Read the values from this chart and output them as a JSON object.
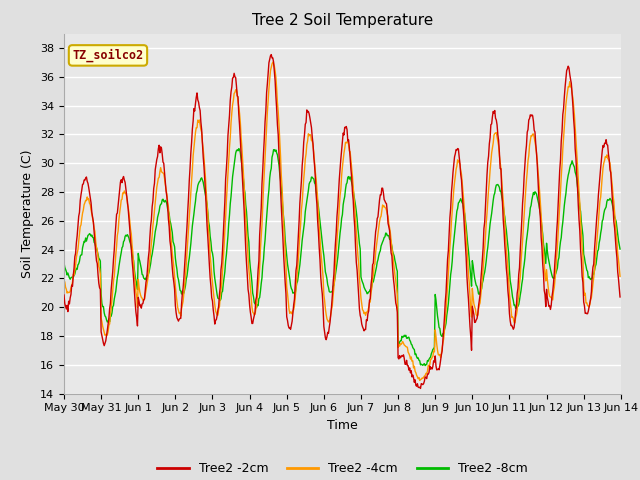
{
  "title": "Tree 2 Soil Temperature",
  "xlabel": "Time",
  "ylabel": "Soil Temperature (C)",
  "annotation": "TZ_soilco2",
  "ylim": [
    14,
    39
  ],
  "yticks": [
    14,
    16,
    18,
    20,
    22,
    24,
    26,
    28,
    30,
    32,
    34,
    36,
    38
  ],
  "color_2cm": "#cc0000",
  "color_4cm": "#ff9900",
  "color_8cm": "#00bb00",
  "bg_color": "#e8e8e8",
  "fig_bg_color": "#e0e0e0",
  "legend_labels": [
    "Tree2 -2cm",
    "Tree2 -4cm",
    "Tree2 -8cm"
  ],
  "x_tick_labels": [
    "May 30",
    "May 31",
    "Jun 1",
    "Jun 2",
    "Jun 3",
    "Jun 4",
    "Jun 5",
    "Jun 6",
    "Jun 7",
    "Jun 8",
    "Jun 9",
    "Jun 10",
    "Jun 11",
    "Jun 12",
    "Jun 13",
    "Jun 14"
  ],
  "x_tick_positions": [
    0,
    1,
    2,
    3,
    4,
    5,
    6,
    7,
    8,
    9,
    10,
    11,
    12,
    13,
    14,
    15
  ]
}
